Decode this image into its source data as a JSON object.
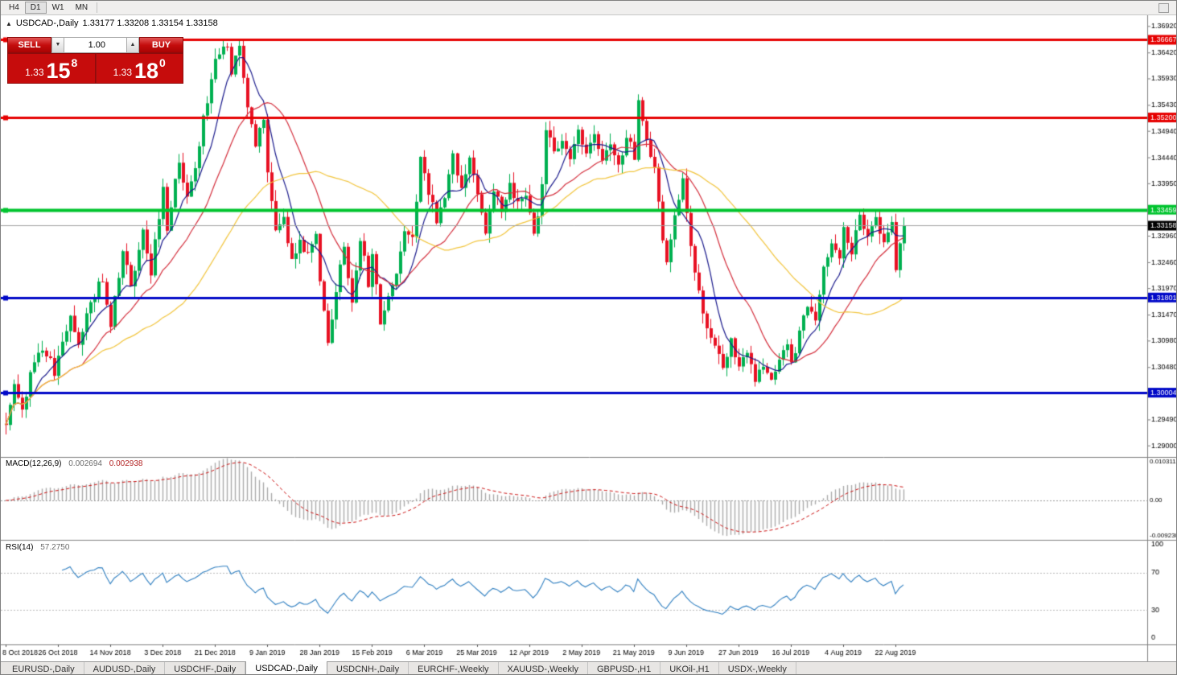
{
  "toolbar": {
    "timeframes": [
      "H4",
      "D1",
      "W1",
      "MN"
    ],
    "active": "D1"
  },
  "chart_header": {
    "symbol": "USDCAD-,Daily",
    "ohlc_text": "1.33177  1.33208  1.33154  1.33158"
  },
  "trade_panel": {
    "sell_label": "SELL",
    "buy_label": "BUY",
    "volume": "1.00",
    "spin_down_icon": "▼",
    "spin_up_icon": "▲",
    "sell_price": {
      "prefix": "1.33",
      "pips": "15",
      "sup": "8"
    },
    "buy_price": {
      "prefix": "1.33",
      "pips": "18",
      "sup": "0"
    }
  },
  "indicators": {
    "macd": {
      "label": "MACD(12,26,9)",
      "value": "0.002694",
      "signal_value": "0.002938",
      "params": {
        "fast": 12,
        "slow": 26,
        "signal": 9
      },
      "ylim": [
        -0.0104,
        0.0115
      ],
      "axis_labels": [
        {
          "v": 0.010311,
          "t": "0.010311"
        },
        {
          "v": 0,
          "t": "0.00"
        },
        {
          "v": -0.0092303,
          "t": "-0.0092303"
        }
      ],
      "colors": {
        "hist": "#ababab",
        "signal": "#cc1111"
      }
    },
    "rsi": {
      "label": "RSI(14)",
      "value": "57.2750",
      "period": 14,
      "levels": [
        70,
        30
      ],
      "axis_labels": [
        {
          "v": 100,
          "t": "100"
        },
        {
          "v": 70,
          "t": "70"
        },
        {
          "v": 30,
          "t": "30"
        },
        {
          "v": 0,
          "t": "0"
        }
      ],
      "color": "#2f7fc1"
    }
  },
  "chart_data": {
    "type": "candlestick",
    "title": "USDCAD-,Daily",
    "ohlc_current": {
      "open": 1.33177,
      "high": 1.33208,
      "low": 1.33154,
      "close": 1.33158
    },
    "ylim": [
      1.2879,
      1.3713
    ],
    "y_ticks": [
      {
        "v": 1.3692,
        "t": "1.36920"
      },
      {
        "v": 1.3642,
        "t": "1.36420"
      },
      {
        "v": 1.3593,
        "t": "1.35930"
      },
      {
        "v": 1.3543,
        "t": "1.35430"
      },
      {
        "v": 1.3494,
        "t": "1.34940"
      },
      {
        "v": 1.3444,
        "t": "1.34440"
      },
      {
        "v": 1.3395,
        "t": "1.33950"
      },
      {
        "v": 1.3296,
        "t": "1.32960"
      },
      {
        "v": 1.3246,
        "t": "1.32460"
      },
      {
        "v": 1.3197,
        "t": "1.31970"
      },
      {
        "v": 1.3147,
        "t": "1.31470"
      },
      {
        "v": 1.3098,
        "t": "1.30980"
      },
      {
        "v": 1.3048,
        "t": "1.30480"
      },
      {
        "v": 1.2949,
        "t": "1.29490"
      },
      {
        "v": 1.29,
        "t": "1.29000"
      }
    ],
    "x_labels": [
      "8 Oct 2018",
      "26 Oct 2018",
      "14 Nov 2018",
      "3 Dec 2018",
      "21 Dec 2018",
      "9 Jan 2019",
      "28 Jan 2019",
      "15 Feb 2019",
      "6 Mar 2019",
      "25 Mar 2019",
      "12 Apr 2019",
      "2 May 2019",
      "21 May 2019",
      "9 Jun 2019",
      "27 Jun 2019",
      "16 Jul 2019",
      "4 Aug 2019",
      "22 Aug 2019"
    ],
    "candles_per_label": 13,
    "num_candles": 224,
    "price_waypoints": [
      [
        0,
        1.295
      ],
      [
        2,
        1.301
      ],
      [
        4,
        1.2975
      ],
      [
        7,
        1.306
      ],
      [
        10,
        1.3075
      ],
      [
        12,
        1.304
      ],
      [
        14,
        1.3095
      ],
      [
        16,
        1.315
      ],
      [
        18,
        1.3085
      ],
      [
        21,
        1.317
      ],
      [
        24,
        1.3215
      ],
      [
        26,
        1.313
      ],
      [
        29,
        1.3265
      ],
      [
        31,
        1.32
      ],
      [
        34,
        1.33
      ],
      [
        36,
        1.3225
      ],
      [
        39,
        1.339
      ],
      [
        40,
        1.331
      ],
      [
        43,
        1.3435
      ],
      [
        45,
        1.336
      ],
      [
        47,
        1.343
      ],
      [
        49,
        1.352
      ],
      [
        52,
        1.363
      ],
      [
        55,
        1.3655
      ],
      [
        56,
        1.36
      ],
      [
        58,
        1.366
      ],
      [
        60,
        1.3545
      ],
      [
        62,
        1.347
      ],
      [
        64,
        1.352
      ],
      [
        65,
        1.342
      ],
      [
        67,
        1.331
      ],
      [
        69,
        1.3335
      ],
      [
        71,
        1.325
      ],
      [
        73,
        1.329
      ],
      [
        75,
        1.326
      ],
      [
        77,
        1.329
      ],
      [
        79,
        1.315
      ],
      [
        80,
        1.3085
      ],
      [
        82,
        1.319
      ],
      [
        84,
        1.328
      ],
      [
        86,
        1.317
      ],
      [
        88,
        1.329
      ],
      [
        90,
        1.321
      ],
      [
        91,
        1.3255
      ],
      [
        93,
        1.3135
      ],
      [
        95,
        1.3185
      ],
      [
        97,
        1.323
      ],
      [
        99,
        1.331
      ],
      [
        101,
        1.3285
      ],
      [
        103,
        1.3455
      ],
      [
        105,
        1.3385
      ],
      [
        107,
        1.333
      ],
      [
        109,
        1.3365
      ],
      [
        111,
        1.3445
      ],
      [
        113,
        1.339
      ],
      [
        115,
        1.344
      ],
      [
        117,
        1.337
      ],
      [
        119,
        1.33
      ],
      [
        121,
        1.3375
      ],
      [
        123,
        1.3345
      ],
      [
        125,
        1.3395
      ],
      [
        127,
        1.3355
      ],
      [
        129,
        1.338
      ],
      [
        131,
        1.329
      ],
      [
        133,
        1.339
      ],
      [
        134,
        1.3505
      ],
      [
        136,
        1.345
      ],
      [
        138,
        1.3485
      ],
      [
        140,
        1.3445
      ],
      [
        142,
        1.349
      ],
      [
        144,
        1.3455
      ],
      [
        146,
        1.3485
      ],
      [
        148,
        1.3445
      ],
      [
        150,
        1.3475
      ],
      [
        152,
        1.3435
      ],
      [
        154,
        1.348
      ],
      [
        156,
        1.345
      ],
      [
        157,
        1.3555
      ],
      [
        159,
        1.348
      ],
      [
        161,
        1.343
      ],
      [
        163,
        1.329
      ],
      [
        164,
        1.3255
      ],
      [
        166,
        1.333
      ],
      [
        168,
        1.3405
      ],
      [
        170,
        1.328
      ],
      [
        172,
        1.3185
      ],
      [
        174,
        1.3125
      ],
      [
        176,
        1.3085
      ],
      [
        178,
        1.3045
      ],
      [
        180,
        1.3095
      ],
      [
        182,
        1.3055
      ],
      [
        184,
        1.3075
      ],
      [
        186,
        1.303
      ],
      [
        188,
        1.306
      ],
      [
        190,
        1.3015
      ],
      [
        192,
        1.3065
      ],
      [
        194,
        1.3085
      ],
      [
        195,
        1.306
      ],
      [
        197,
        1.311
      ],
      [
        199,
        1.3165
      ],
      [
        201,
        1.3135
      ],
      [
        203,
        1.3235
      ],
      [
        205,
        1.329
      ],
      [
        207,
        1.3245
      ],
      [
        208,
        1.331
      ],
      [
        210,
        1.327
      ],
      [
        212,
        1.3335
      ],
      [
        214,
        1.329
      ],
      [
        216,
        1.3335
      ],
      [
        218,
        1.3285
      ],
      [
        220,
        1.333
      ],
      [
        221,
        1.324
      ],
      [
        223,
        1.33158
      ]
    ],
    "hlines": [
      {
        "value": 1.36667,
        "label": "1.36667",
        "color": "#e60000",
        "thickness": 3
      },
      {
        "value": 1.352,
        "label": "1.35200",
        "color": "#e60000",
        "thickness": 3
      },
      {
        "value": 1.33459,
        "label": "1.33459",
        "color": "#00c42e",
        "thickness": 4
      },
      {
        "value": 1.31801,
        "label": "1.31801",
        "color": "#0008c8",
        "thickness": 3
      },
      {
        "value": 1.30004,
        "label": "1.30004",
        "color": "#0008c8",
        "thickness": 3
      }
    ],
    "current_price": {
      "value": 1.33158,
      "label": "1.33158"
    },
    "moving_averages": [
      {
        "period": 8,
        "color": "#1a1a8c"
      },
      {
        "period": 20,
        "color": "#d42e3c"
      },
      {
        "period": 45,
        "color": "#f2c53d"
      }
    ],
    "candle_colors": {
      "up": "#00b050",
      "down": "#e81123"
    }
  },
  "tabs": {
    "items": [
      "EURUSD-,Daily",
      "AUDUSD-,Daily",
      "USDCHF-,Daily",
      "USDCAD-,Daily",
      "USDCNH-,Daily",
      "EURCHF-,Weekly",
      "XAUUSD-,Weekly",
      "GBPUSD-,H1",
      "UKOil-,H1",
      "USDX-,Weekly"
    ],
    "active_index": 3
  }
}
